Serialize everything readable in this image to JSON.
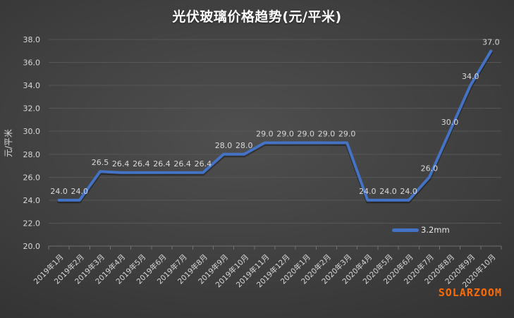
{
  "chart_data": {
    "type": "line",
    "title": "光伏玻璃价格趋势(元/平米)",
    "ylabel": "元/平米",
    "xlabel": "",
    "categories": [
      "2019年1月",
      "2019年2月",
      "2019年3月",
      "2019年4月",
      "2019年5月",
      "2019年6月",
      "2019年7月",
      "2019年8月",
      "2019年9月",
      "2019年10月",
      "2019年11月",
      "2019年12月",
      "2020年1月",
      "2020年2月",
      "2020年3月",
      "2020年4月",
      "2020年5月",
      "2020年6月",
      "2020年7月",
      "2020年8月",
      "2020年9月",
      "2020年10月"
    ],
    "series": [
      {
        "name": "3.2mm",
        "values": [
          24.0,
          24.0,
          26.5,
          26.4,
          26.4,
          26.4,
          26.4,
          26.4,
          28.0,
          28.0,
          29.0,
          29.0,
          29.0,
          29.0,
          29.0,
          24.0,
          24.0,
          24.0,
          26.0,
          30.0,
          34.0,
          37.0
        ]
      }
    ],
    "ylim": [
      20,
      38
    ],
    "ytick_step": 2,
    "grid": true,
    "data_labels": true,
    "legend_position": "bottom-right",
    "colors": {
      "line": "#4472C4",
      "title": "#ffffff",
      "tick_label": "#d9d9d9",
      "data_label": "#d9d9d9",
      "grid": "#5a5a5a",
      "axis": "#787878",
      "watermark": "#ff6a00"
    }
  },
  "watermark": {
    "text": "SOLARZOOM"
  }
}
